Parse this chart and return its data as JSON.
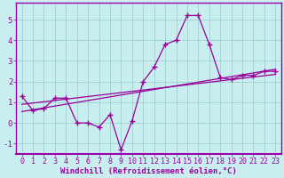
{
  "xlabel": "Windchill (Refroidissement éolien,°C)",
  "bg_color": "#c8eef0",
  "line_color": "#990099",
  "grid_color": "#9dcfcf",
  "xlim": [
    -0.5,
    23.5
  ],
  "ylim": [
    -1.5,
    5.8
  ],
  "yticks": [
    -1,
    0,
    1,
    2,
    3,
    4,
    5
  ],
  "xticks": [
    0,
    1,
    2,
    3,
    4,
    5,
    6,
    7,
    8,
    9,
    10,
    11,
    12,
    13,
    14,
    15,
    16,
    17,
    18,
    19,
    20,
    21,
    22,
    23
  ],
  "series1_x": [
    0,
    1,
    2,
    3,
    4,
    5,
    6,
    7,
    8,
    9,
    10,
    11,
    12,
    13,
    14,
    15,
    16,
    17,
    18,
    19,
    20,
    21,
    22,
    23
  ],
  "series1_y": [
    1.3,
    0.6,
    0.7,
    1.2,
    1.2,
    0.0,
    0.0,
    -0.2,
    0.4,
    -1.3,
    0.1,
    2.0,
    2.7,
    3.8,
    4.0,
    5.2,
    5.2,
    3.8,
    2.2,
    2.1,
    2.3,
    2.3,
    2.5,
    2.5
  ],
  "series2_x": [
    0,
    23
  ],
  "series2_y": [
    0.55,
    2.6
  ],
  "series3_x": [
    0,
    23
  ],
  "series3_y": [
    0.9,
    2.35
  ],
  "marker": "+",
  "markersize": 5,
  "linewidth": 0.9,
  "xlabel_fontsize": 6.5,
  "tick_fontsize": 6.0,
  "xlabel_fontfamily": "monospace",
  "border_color": "#9900aa"
}
